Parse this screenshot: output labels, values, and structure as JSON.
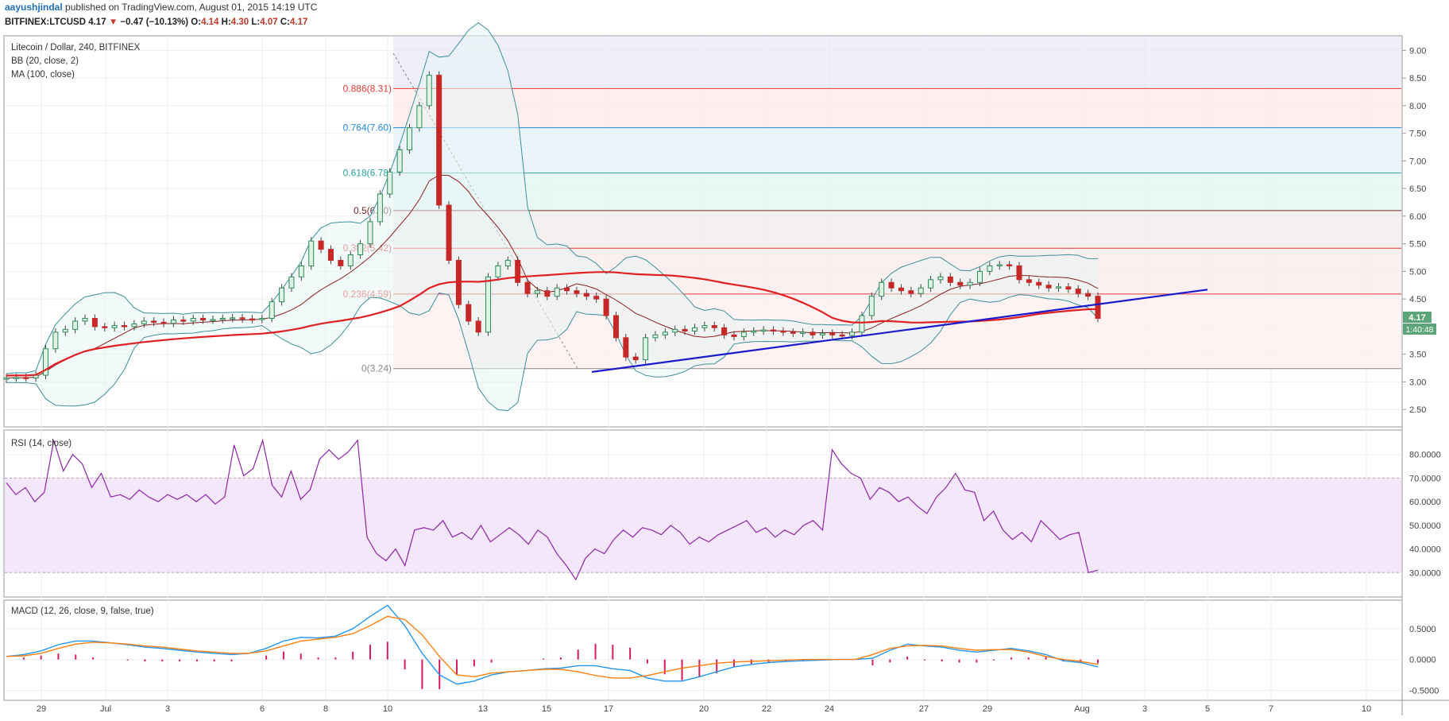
{
  "header": {
    "author": "aayushjindal",
    "published_text": "published on TradingView.com, August 01, 2015 14:19 UTC",
    "symbol": "BITFINEX:LTCUSD",
    "last": "4.17",
    "change": "−0.47 (−10.13%)",
    "open_label": "O:",
    "open_value": "4.14",
    "high_label": "H:",
    "high_value": "4.30",
    "low_label": "L:",
    "low_value": "4.07",
    "close_label": "C:",
    "close_value": "4.17"
  },
  "chart_data": [
    {
      "type": "candlestick",
      "title": "Litecoin / Dollar, 240, BITFINEX",
      "indicators": [
        "BB (20, close, 2)",
        "MA (100, close)"
      ],
      "ylim": [
        2.2,
        9.25
      ],
      "y_ticks": [
        "9.00",
        "8.50",
        "8.00",
        "7.50",
        "7.00",
        "6.50",
        "6.00",
        "5.50",
        "5.00",
        "4.50",
        "4.00",
        "3.50",
        "3.00",
        "2.50"
      ],
      "y_tick_values": [
        9.0,
        8.5,
        8.0,
        7.5,
        7.0,
        6.5,
        6.0,
        5.5,
        5.0,
        4.5,
        4.0,
        3.5,
        3.0,
        2.5
      ],
      "x_ticks": [
        "29",
        "Jul",
        "3",
        "6",
        "8",
        "10",
        "13",
        "15",
        "17",
        "20",
        "22",
        "24",
        "27",
        "29",
        "Aug",
        "3",
        "5",
        "7",
        "10"
      ],
      "price_label": "4.17",
      "countdown_label": "1:40:48",
      "fibonacci": [
        {
          "label": "0.886(8.31)",
          "level": 8.31,
          "color": "#e53935"
        },
        {
          "label": "0.764(7.60)",
          "level": 7.6,
          "color": "#1e88e5"
        },
        {
          "label": "0.618(6.78)",
          "level": 6.78,
          "color": "#26a69a"
        },
        {
          "label": "0.5(6.10)",
          "level": 6.1,
          "color": "#6d2a2a"
        },
        {
          "label": "0.382(5.42)",
          "level": 5.42,
          "color": "#e53935"
        },
        {
          "label": "0.236(4.59)",
          "level": 4.59,
          "color": "#e53935"
        },
        {
          "label": "0(3.24)",
          "level": 3.24,
          "color": "#888888"
        }
      ],
      "close_series": [
        3.07,
        3.08,
        3.07,
        3.12,
        3.6,
        3.9,
        3.95,
        4.1,
        4.15,
        4.0,
        3.98,
        4.02,
        4.0,
        4.05,
        4.1,
        4.08,
        4.06,
        4.12,
        4.1,
        4.15,
        4.12,
        4.13,
        4.15,
        4.16,
        4.14,
        4.13,
        4.15,
        4.45,
        4.7,
        4.9,
        5.1,
        5.55,
        5.4,
        5.2,
        5.1,
        5.3,
        5.5,
        5.9,
        6.4,
        6.8,
        7.2,
        7.6,
        8.0,
        8.55,
        6.2,
        5.2,
        4.4,
        4.1,
        3.9,
        4.9,
        5.1,
        5.2,
        4.8,
        4.6,
        4.65,
        4.55,
        4.7,
        4.65,
        4.6,
        4.55,
        4.5,
        4.2,
        3.8,
        3.45,
        3.4,
        3.8,
        3.85,
        3.9,
        3.95,
        3.92,
        3.98,
        4.02,
        3.98,
        3.85,
        3.82,
        3.9,
        3.92,
        3.94,
        3.92,
        3.9,
        3.88,
        3.9,
        3.85,
        3.88,
        3.85,
        3.84,
        3.9,
        4.2,
        4.55,
        4.8,
        4.7,
        4.65,
        4.6,
        4.7,
        4.85,
        4.9,
        4.8,
        4.75,
        4.8,
        5.0,
        5.1,
        5.12,
        5.1,
        4.85,
        4.8,
        4.75,
        4.7,
        4.72,
        4.68,
        4.6,
        4.55,
        4.15
      ],
      "ma100_close": 4.25,
      "trendline": [
        {
          "date": "Jul 16",
          "value": 3.18
        },
        {
          "date": "Aug 5",
          "value": 4.67
        }
      ]
    },
    {
      "type": "line",
      "title": "RSI (14, close)",
      "ylim": [
        20,
        90
      ],
      "y_ticks": [
        "80.0000",
        "70.0000",
        "60.0000",
        "50.0000",
        "40.0000",
        "30.0000"
      ],
      "y_tick_values": [
        80,
        70,
        60,
        50,
        40,
        30
      ],
      "band": [
        30,
        70
      ],
      "series": [
        {
          "values": [
            68,
            63,
            66,
            60,
            64,
            86,
            73,
            80,
            76,
            66,
            72,
            62,
            63,
            61,
            65,
            62,
            60,
            63,
            61,
            63,
            60,
            63,
            59,
            62,
            84,
            71,
            74,
            86,
            67,
            62,
            73,
            61,
            65,
            78,
            82,
            78,
            81,
            86,
            45,
            38,
            35,
            40,
            33,
            48,
            49,
            48,
            52,
            45,
            47,
            44,
            50,
            43,
            46,
            49,
            46,
            42,
            48,
            45,
            38,
            33,
            27,
            36,
            40,
            38,
            44,
            48,
            45,
            49,
            48,
            46,
            50,
            47,
            42,
            45,
            43,
            46,
            48,
            50,
            52,
            47,
            49,
            45,
            48,
            46,
            50,
            52,
            48,
            82,
            76,
            72,
            70,
            61,
            66,
            64,
            60,
            62,
            58,
            55,
            62,
            66,
            72,
            65,
            64,
            52,
            56,
            48,
            44,
            47,
            43,
            52,
            48,
            44,
            46,
            47,
            30,
            31
          ]
        }
      ]
    },
    {
      "type": "line",
      "title": "MACD (12, 26, close, 9, false, true)",
      "ylim": [
        -0.65,
        0.95
      ],
      "y_ticks": [
        "0.5000",
        "0.0000",
        "-0.5000"
      ],
      "y_tick_values": [
        0.5,
        0,
        -0.5
      ],
      "series": [
        {
          "name": "MACD",
          "color": "#2196f3",
          "values": [
            0.05,
            0.08,
            0.14,
            0.24,
            0.3,
            0.3,
            0.27,
            0.24,
            0.2,
            0.18,
            0.15,
            0.12,
            0.1,
            0.08,
            0.1,
            0.18,
            0.3,
            0.36,
            0.35,
            0.38,
            0.5,
            0.7,
            0.88,
            0.55,
            0.1,
            -0.25,
            -0.4,
            -0.35,
            -0.25,
            -0.2,
            -0.18,
            -0.15,
            -0.14,
            -0.1,
            -0.1,
            -0.15,
            -0.18,
            -0.3,
            -0.35,
            -0.35,
            -0.28,
            -0.2,
            -0.12,
            -0.08,
            -0.05,
            -0.03,
            -0.02,
            -0.01,
            0.0,
            0.0,
            0.02,
            0.15,
            0.25,
            0.22,
            0.2,
            0.15,
            0.12,
            0.15,
            0.18,
            0.14,
            0.08,
            -0.02,
            -0.05,
            -0.12
          ]
        },
        {
          "name": "Signal",
          "color": "#ff7f0e",
          "values": [
            0.05,
            0.06,
            0.1,
            0.18,
            0.25,
            0.28,
            0.27,
            0.25,
            0.22,
            0.2,
            0.17,
            0.14,
            0.12,
            0.1,
            0.1,
            0.14,
            0.22,
            0.3,
            0.33,
            0.36,
            0.42,
            0.55,
            0.7,
            0.65,
            0.4,
            0.05,
            -0.25,
            -0.28,
            -0.22,
            -0.2,
            -0.18,
            -0.16,
            -0.16,
            -0.2,
            -0.26,
            -0.3,
            -0.3,
            -0.26,
            -0.2,
            -0.14,
            -0.1,
            -0.06,
            -0.04,
            -0.03,
            -0.02,
            -0.01,
            0.0,
            0.0,
            0.0,
            0.0,
            0.08,
            0.18,
            0.22,
            0.23,
            0.22,
            0.18,
            0.15,
            0.16,
            0.16,
            0.12,
            0.05,
            0.0,
            -0.03,
            -0.08
          ]
        }
      ]
    }
  ]
}
